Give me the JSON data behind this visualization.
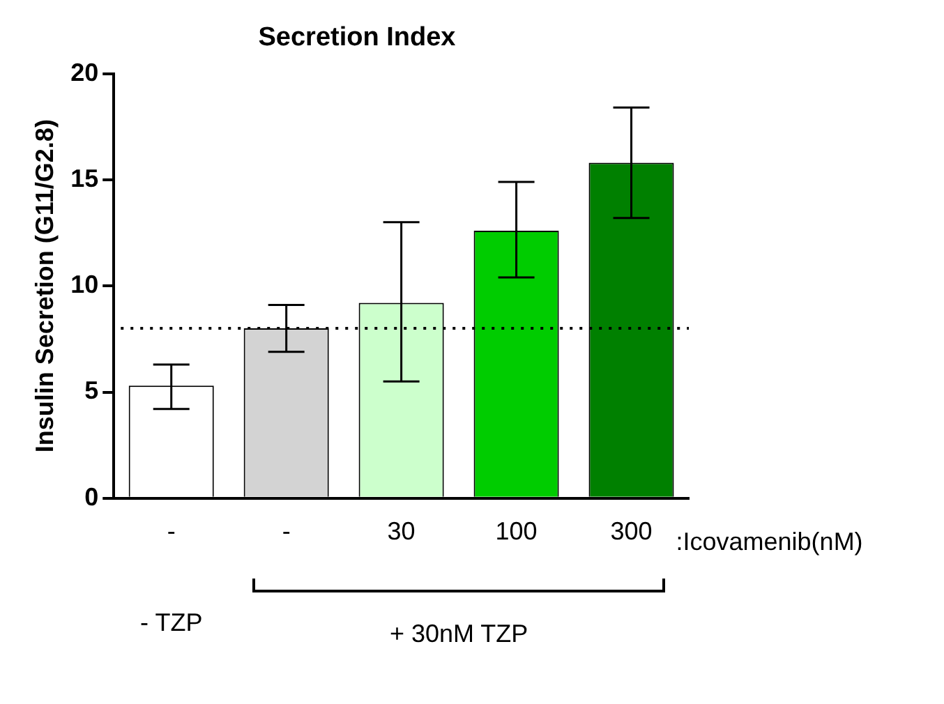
{
  "chart_data": {
    "type": "bar",
    "title": "Secretion Index",
    "ylabel": "Insulin Secretion (G11/G2.8)",
    "categories": [
      "-",
      "-",
      "30",
      "100",
      "300"
    ],
    "values": [
      5.3,
      8.0,
      9.2,
      12.6,
      15.8
    ],
    "colors": [
      "#ffffff",
      "#d3d3d3",
      "#ccffcc",
      "#00cc00",
      "#008000"
    ],
    "errors": [
      [
        4.2,
        6.3
      ],
      [
        6.9,
        9.1
      ],
      [
        5.5,
        13.0
      ],
      [
        10.4,
        14.9
      ],
      [
        13.2,
        18.4
      ]
    ],
    "ylim": [
      0,
      20
    ],
    "yticks": [
      0,
      5,
      10,
      15,
      20
    ],
    "grid": false,
    "legend": false,
    "ref_lines": [
      {
        "axis": "y",
        "value": 8,
        "line_style": "dotted",
        "color": "#000000"
      }
    ],
    "annotations": [
      ":Icovamenib(nM)",
      "- TZP",
      "+ 30nM TZP"
    ]
  }
}
